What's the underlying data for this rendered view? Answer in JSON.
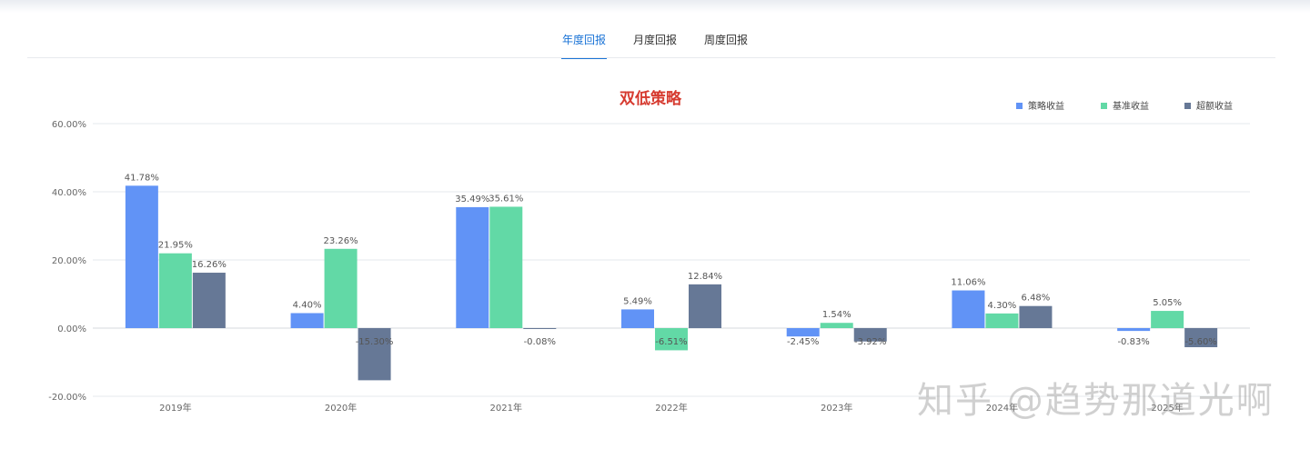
{
  "tabs": [
    {
      "label": "年度回报",
      "active": true
    },
    {
      "label": "月度回报",
      "active": false
    },
    {
      "label": "周度回报",
      "active": false
    }
  ],
  "chart_data": {
    "type": "bar",
    "title": "双低策略",
    "title_color": "#d63a2f",
    "categories": [
      "2019年",
      "2020年",
      "2021年",
      "2022年",
      "2023年",
      "2024年",
      "2025年"
    ],
    "series": [
      {
        "name": "策略收益",
        "color": "#6193f6",
        "values": [
          41.78,
          4.4,
          35.49,
          5.49,
          -2.45,
          11.06,
          -0.83
        ]
      },
      {
        "name": "基准收益",
        "color": "#62d9a6",
        "values": [
          21.95,
          23.26,
          35.61,
          -6.51,
          1.54,
          4.3,
          5.05
        ]
      },
      {
        "name": "超额收益",
        "color": "#667896",
        "values": [
          16.26,
          -15.3,
          -0.08,
          12.84,
          -3.92,
          6.48,
          -5.6
        ]
      }
    ],
    "value_labels": [
      [
        "41.78%",
        "4.40%",
        "35.49%",
        "5.49%",
        "-2.45%",
        "11.06%",
        "-0.83%"
      ],
      [
        "21.95%",
        "23.26%",
        "35.61%",
        "-6.51%",
        "1.54%",
        "4.30%",
        "5.05%"
      ],
      [
        "16.26%",
        "-15.30%",
        "-0.08%",
        "12.84%",
        "-3.92%",
        "6.48%",
        "-5.60%"
      ]
    ],
    "yticks": [
      "60.00%",
      "40.00%",
      "20.00%",
      "0.00%",
      "-20.00%"
    ],
    "ylim": [
      -20,
      60
    ],
    "legend_position": "top-right",
    "grid": true
  },
  "watermark": "知乎 @趋势那道光啊"
}
